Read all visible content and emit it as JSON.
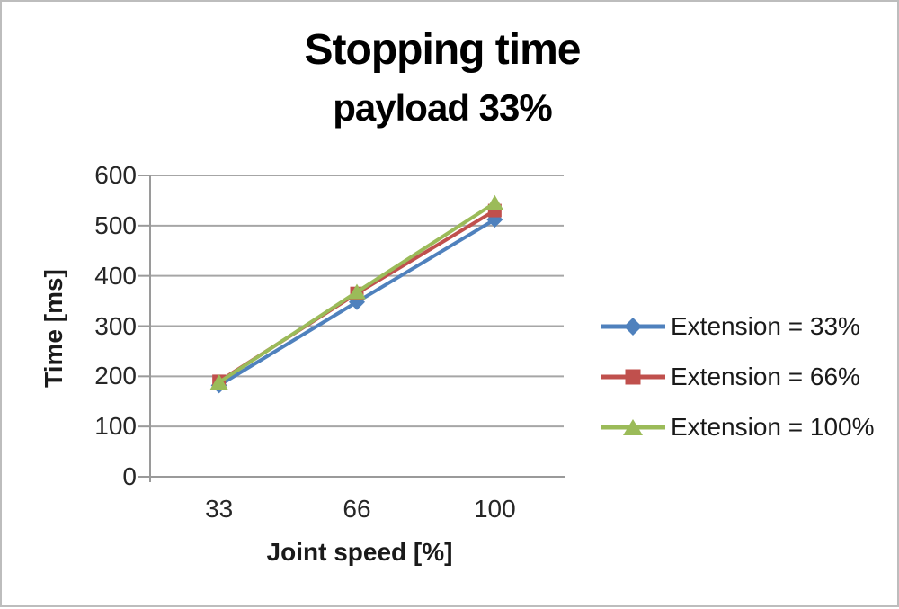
{
  "chart_data": {
    "type": "line",
    "title": "Stopping time",
    "subtitle": "payload 33%",
    "xlabel": "Joint speed [%]",
    "ylabel": "Time [ms]",
    "categories": [
      "33",
      "66",
      "100"
    ],
    "series": [
      {
        "name": "Extension = 33%",
        "marker": "diamond",
        "color": "#4F81BD",
        "values": [
          182,
          348,
          512
        ]
      },
      {
        "name": "Extension = 66%",
        "marker": "square",
        "color": "#C0504D",
        "values": [
          190,
          365,
          530
        ]
      },
      {
        "name": "Extension = 100%",
        "marker": "triangle",
        "color": "#9BBB59",
        "values": [
          188,
          368,
          545
        ]
      }
    ],
    "ylim": [
      0,
      600
    ],
    "ytick_step": 100,
    "yticks": [
      0,
      100,
      200,
      300,
      400,
      500,
      600
    ],
    "grid": true,
    "gridline_color": "#a6a6a6",
    "axis_color": "#9a9a9a",
    "text_color": "#262626",
    "legend_position": "right",
    "frame_border_color": "#bdbdbd"
  }
}
